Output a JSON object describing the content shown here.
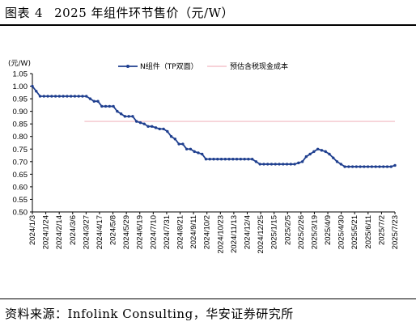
{
  "figure": {
    "title_prefix": "图表",
    "title_number": "4",
    "title_text": "2025 年组件环节售价（元/W）",
    "source": "资料来源：Infolink Consulting，华安证券研究所"
  },
  "chart_data": {
    "type": "line",
    "ylabel": "(元/W)",
    "ylim": [
      0.5,
      1.05
    ],
    "yticks": [
      "1.05",
      "1.00",
      "0.95",
      "0.90",
      "0.85",
      "0.80",
      "0.75",
      "0.70",
      "0.65",
      "0.60",
      "0.55",
      "0.50"
    ],
    "grid": false,
    "legend_placement": "top",
    "x_tick_labels": [
      "2024/1/3",
      "2024/1/24",
      "2024/2/14",
      "2024/3/6",
      "2024/3/27",
      "2024/4/17",
      "2024/5/8",
      "2024/5/29",
      "2024/6/19",
      "2024/7/10",
      "2024/7/31",
      "2024/8/21",
      "2024/9/11",
      "2024/10/2",
      "2024/10/23",
      "2024/11/13",
      "2024/12/4",
      "2024/12/25",
      "2025/1/15",
      "2025/2/5",
      "2025/2/26",
      "2025/3/19",
      "2025/4/9",
      "2025/4/30",
      "2025/5/21",
      "2025/6/11",
      "2025/7/2",
      "2025/7/23"
    ],
    "series": [
      {
        "name": "N组件（TP双面）",
        "color": "#1f3f8f",
        "marker": "circle",
        "values": [
          1.0,
          0.98,
          0.96,
          0.96,
          0.96,
          0.96,
          0.96,
          0.96,
          0.96,
          0.96,
          0.96,
          0.96,
          0.96,
          0.96,
          0.96,
          0.95,
          0.94,
          0.94,
          0.92,
          0.92,
          0.92,
          0.92,
          0.9,
          0.89,
          0.88,
          0.88,
          0.88,
          0.86,
          0.855,
          0.85,
          0.84,
          0.84,
          0.835,
          0.83,
          0.83,
          0.82,
          0.8,
          0.79,
          0.77,
          0.77,
          0.75,
          0.75,
          0.74,
          0.735,
          0.73,
          0.71,
          0.71,
          0.71,
          0.71,
          0.71,
          0.71,
          0.71,
          0.71,
          0.71,
          0.71,
          0.71,
          0.71,
          0.71,
          0.7,
          0.69,
          0.69,
          0.69,
          0.69,
          0.69,
          0.69,
          0.69,
          0.69,
          0.69,
          0.69,
          0.695,
          0.7,
          0.72,
          0.73,
          0.74,
          0.75,
          0.745,
          0.74,
          0.73,
          0.715,
          0.7,
          0.69,
          0.68,
          0.68,
          0.68,
          0.68,
          0.68,
          0.68,
          0.68,
          0.68,
          0.68,
          0.68,
          0.68,
          0.68,
          0.68,
          0.685
        ]
      },
      {
        "name": "预估含税现金成本",
        "color": "#f2b8c0",
        "marker": "none",
        "value": 0.86,
        "start_category": "2024/3/27",
        "end_category": "2025/7/23"
      }
    ]
  }
}
